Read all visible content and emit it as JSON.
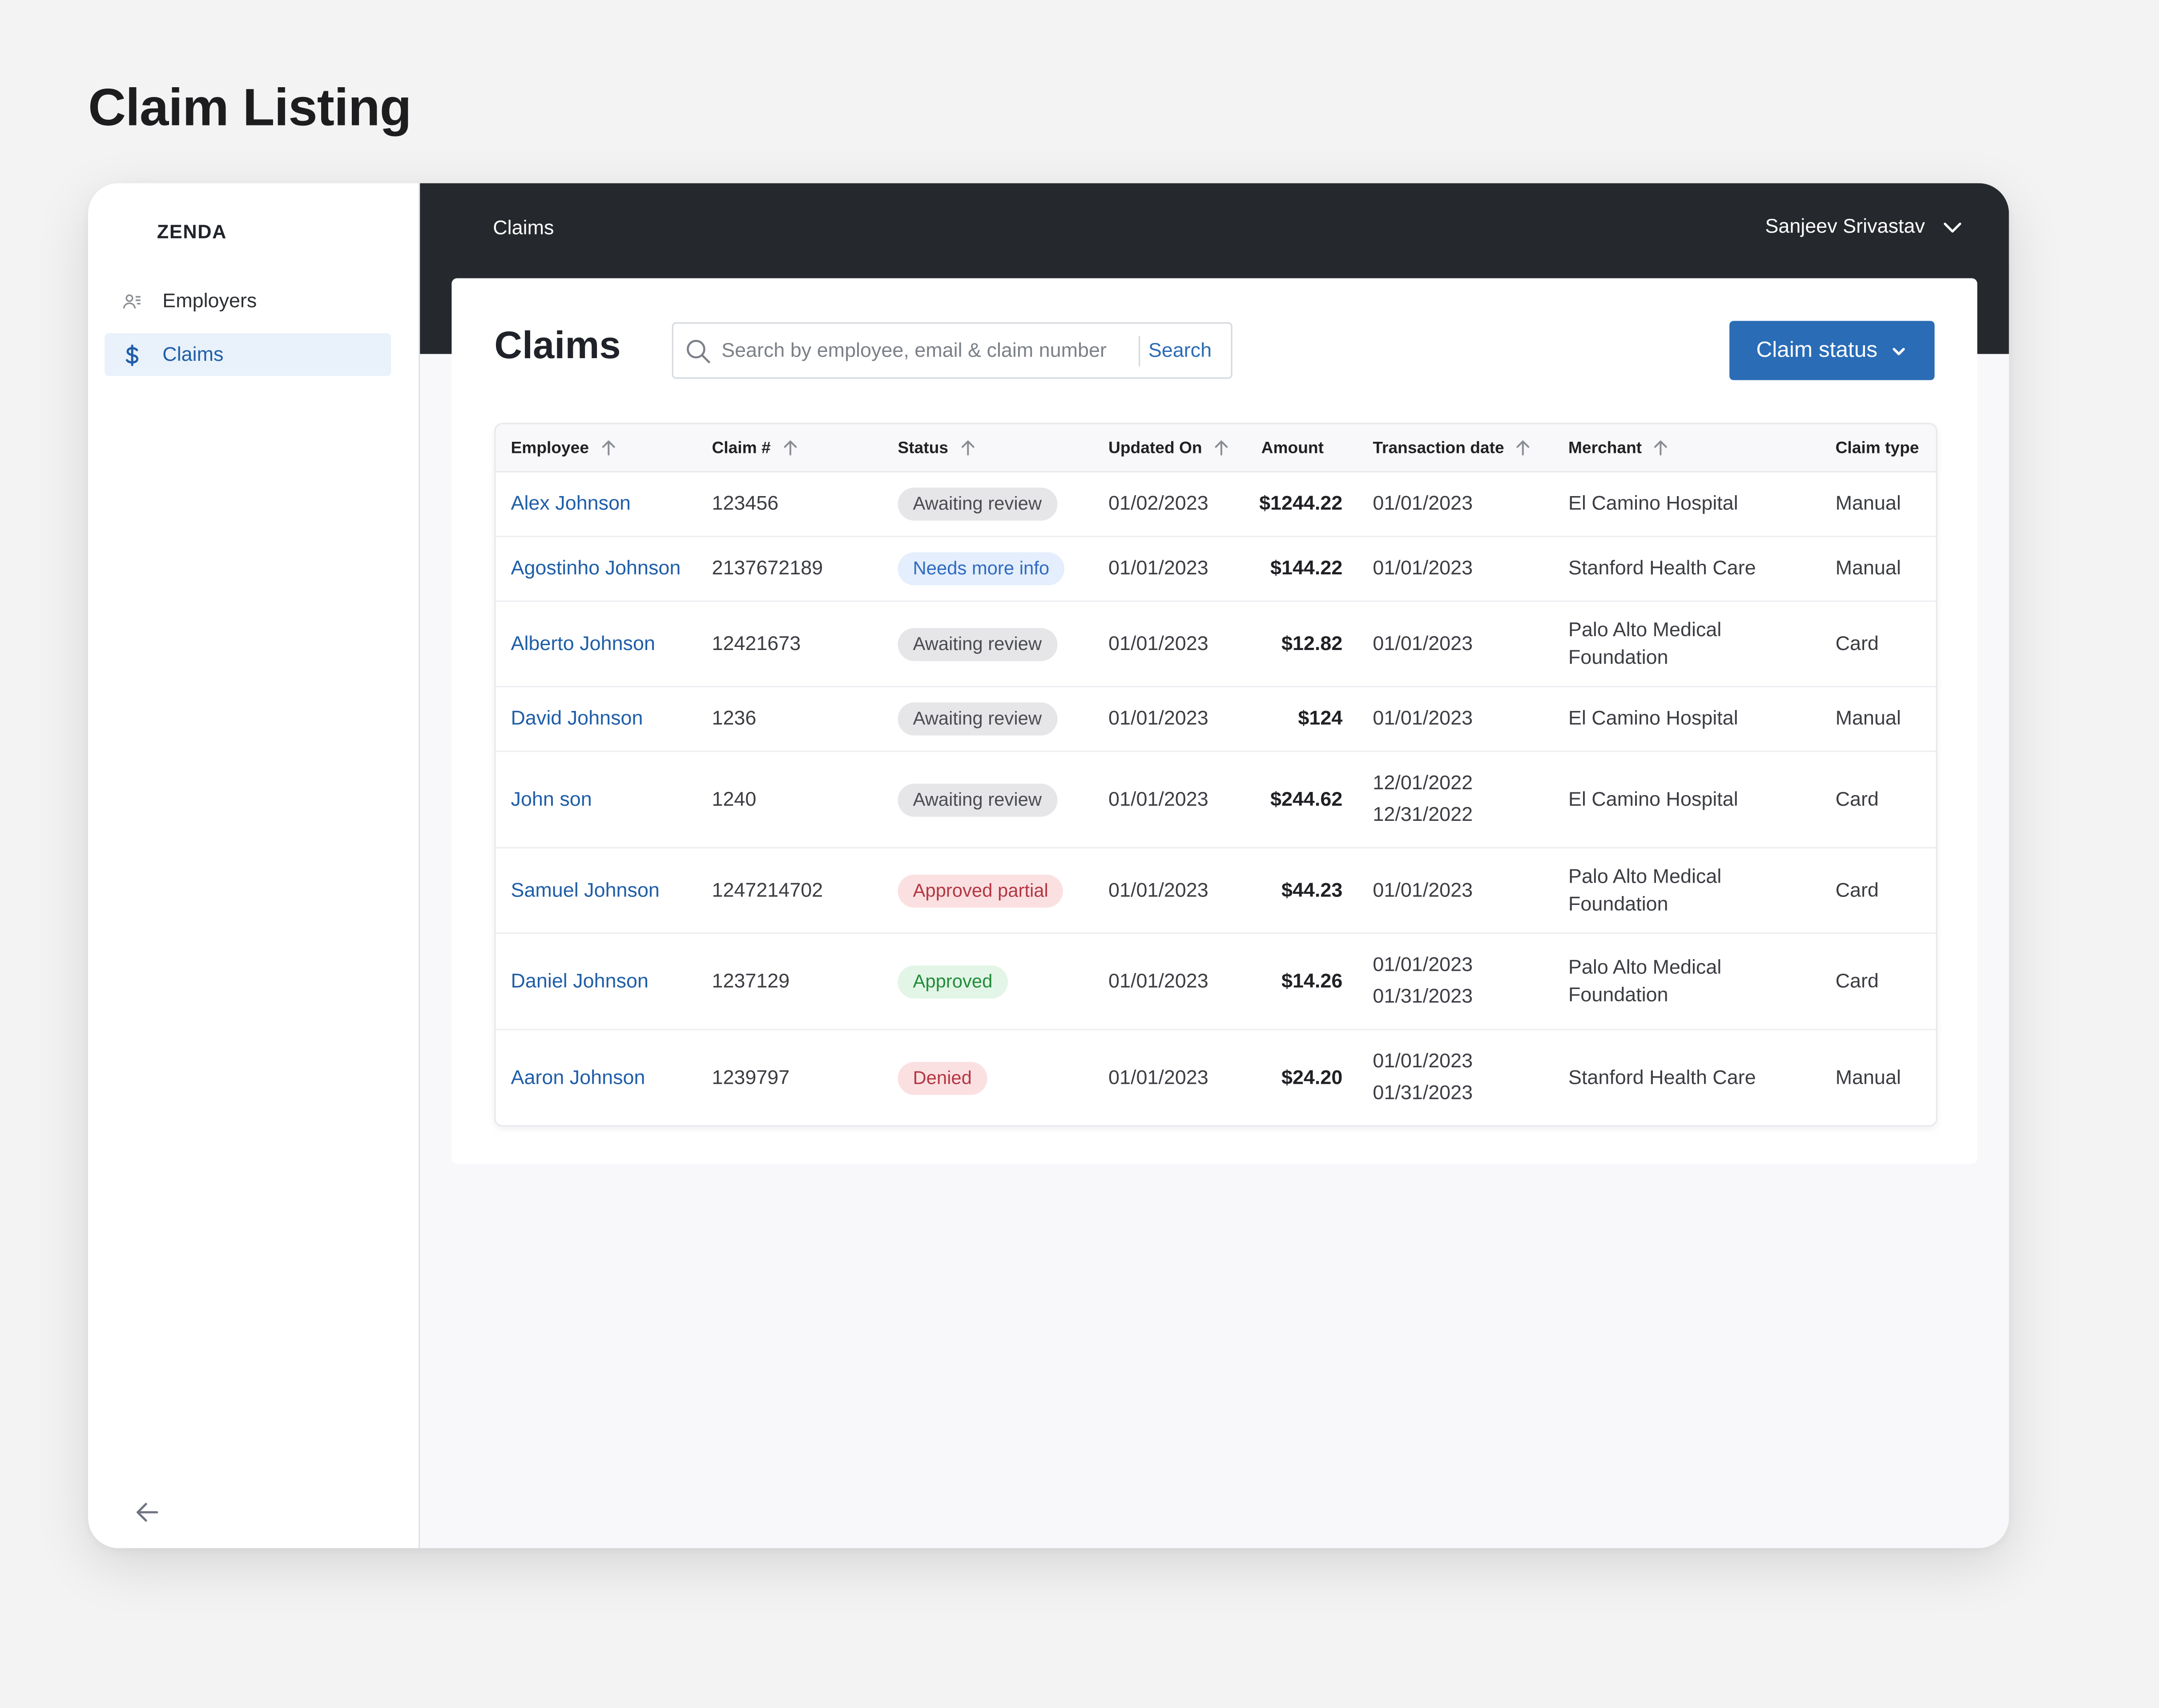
{
  "page": {
    "title": "Claim Listing"
  },
  "sidebar": {
    "brand": "ZENDA",
    "items": [
      {
        "label": "Employers",
        "icon": "users-icon",
        "active": false
      },
      {
        "label": "Claims",
        "icon": "dollar-icon",
        "active": true
      }
    ],
    "collapse_icon": "arrow-left-icon"
  },
  "topbar": {
    "breadcrumb": "Claims",
    "user_name": "Sanjeev Srivastav"
  },
  "main": {
    "title": "Claims",
    "search": {
      "placeholder": "Search by employee, email & claim number",
      "button_label": "Search"
    },
    "status_button_label": "Claim status"
  },
  "table": {
    "columns": [
      "Employee",
      "Claim #",
      "Status",
      "Updated On",
      "Amount",
      "Transaction date",
      "Merchant",
      "Claim type"
    ],
    "rows": [
      {
        "employee": "Alex Johnson",
        "claim": "123456",
        "status": "Awaiting review",
        "updated": "01/02/2023",
        "amount": "$1244.22",
        "txn": [
          "01/01/2023"
        ],
        "merchant": "El Camino Hospital",
        "type": "Manual"
      },
      {
        "employee": "Agostinho Johnson",
        "claim": "2137672189",
        "status": "Needs more info",
        "updated": "01/01/2023",
        "amount": "$144.22",
        "txn": [
          "01/01/2023"
        ],
        "merchant": "Stanford Health Care",
        "type": "Manual"
      },
      {
        "employee": "Alberto Johnson",
        "claim": "12421673",
        "status": "Awaiting review",
        "updated": "01/01/2023",
        "amount": "$12.82",
        "txn": [
          "01/01/2023"
        ],
        "merchant": "Palo Alto Medical Foundation",
        "type": "Card"
      },
      {
        "employee": "David Johnson",
        "claim": "1236",
        "status": "Awaiting review",
        "updated": "01/01/2023",
        "amount": "$124",
        "txn": [
          "01/01/2023"
        ],
        "merchant": "El Camino Hospital",
        "type": "Manual"
      },
      {
        "employee": "John son",
        "claim": "1240",
        "status": "Awaiting review",
        "updated": "01/01/2023",
        "amount": "$244.62",
        "txn": [
          "12/01/2022",
          "12/31/2022"
        ],
        "merchant": "El Camino Hospital",
        "type": "Card"
      },
      {
        "employee": "Samuel Johnson",
        "claim": "1247214702",
        "status": "Approved partial",
        "updated": "01/01/2023",
        "amount": "$44.23",
        "txn": [
          "01/01/2023"
        ],
        "merchant": "Palo Alto Medical Foundation",
        "type": "Card"
      },
      {
        "employee": "Daniel Johnson",
        "claim": "1237129",
        "status": "Approved",
        "updated": "01/01/2023",
        "amount": "$14.26",
        "txn": [
          "01/01/2023",
          "01/31/2023"
        ],
        "merchant": "Palo Alto Medical Foundation",
        "type": "Card"
      },
      {
        "employee": "Aaron Johnson",
        "claim": "1239797",
        "status": "Denied",
        "updated": "01/01/2023",
        "amount": "$24.20",
        "txn": [
          "01/01/2023",
          "01/31/2023"
        ],
        "merchant": "Stanford Health Care",
        "type": "Manual"
      }
    ]
  },
  "colors": {
    "accent": "#2a6cb6",
    "topbar": "#25282c",
    "status_awaiting": "#e6e6e8",
    "status_needs_info": "#e4eefc",
    "status_approved": "#e2f5e6",
    "status_denied": "#fbe0e2"
  }
}
